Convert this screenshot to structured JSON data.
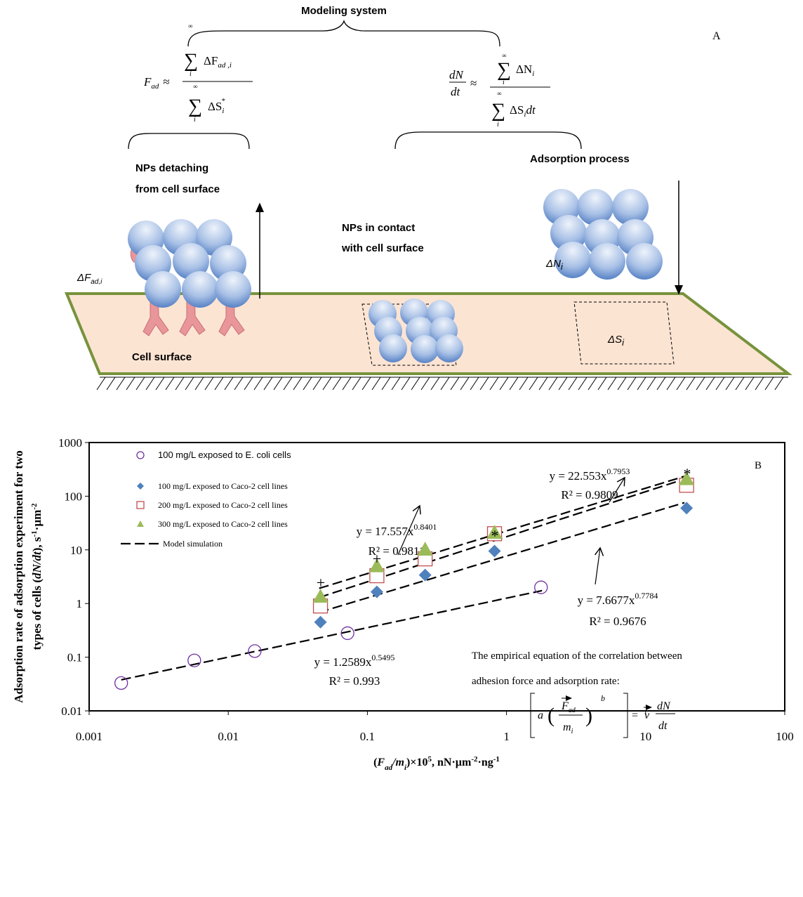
{
  "diagram": {
    "title": "Modeling system",
    "panel": "A",
    "formula_left": {
      "lhs": "F",
      "lhs_sub": "ad",
      "approx": "≈",
      "sum": "∑",
      "inf": "∞",
      "index": "i",
      "num": "ΔF",
      "num_sub": "ad ,i",
      "den": "ΔS",
      "den_sub": "i",
      "den_sup": "*"
    },
    "formula_right": {
      "dn": "dN",
      "dt": "dt",
      "approx": "≈",
      "sum": "∑",
      "inf": "∞",
      "index": "i",
      "num": "ΔN",
      "num_sub": "i",
      "den": "ΔS",
      "den_sub": "i",
      "den_tail": "dt"
    },
    "labels": {
      "detach_1": "NPs detaching",
      "detach_2": "from cell surface",
      "adsorption": "Adsorption process",
      "contact_1": "NPs in contact",
      "contact_2": "with cell surface",
      "cell_surface": "Cell surface"
    },
    "symbols": {
      "force": "ΔF",
      "force_sub": "ad,i",
      "count": "ΔN",
      "count_sub": "i",
      "area": "ΔS",
      "area_sub": "i"
    }
  },
  "chart_data": {
    "type": "scatter",
    "panel": "B",
    "log_x": true,
    "log_y": true,
    "xlim": [
      0.001,
      100
    ],
    "xticks": [
      0.001,
      0.01,
      0.1,
      1,
      10,
      100
    ],
    "ylim": [
      0.01,
      1000
    ],
    "yticks": [
      0.01,
      0.1,
      1,
      10,
      100,
      1000
    ],
    "y_label": {
      "line1": "Adsorption rate of adsorption experiment for two",
      "line2": [
        "types of cells (",
        "dN/dt",
        "), s",
        "-1",
        "·µm",
        "-2"
      ]
    },
    "x_label": [
      "(",
      "F",
      "ad",
      "/m",
      "i",
      ")×10",
      "5",
      ", nN·µm",
      "-2",
      "·ng",
      "-1"
    ],
    "legend": "upper left",
    "series": [
      {
        "name": "100 mg/L exposed to E. coli cells",
        "color": "#7030a0",
        "marker": "open-circle",
        "x": [
          0.0017,
          0.0057,
          0.0155,
          0.072,
          1.77
        ],
        "values": [
          0.033,
          0.087,
          0.13,
          0.28,
          2.0
        ]
      },
      {
        "name": "100 mg/L exposed to Caco-2 cell lines",
        "color": "#4f81bd",
        "marker": "diamond",
        "x": [
          0.046,
          0.117,
          0.26,
          0.82,
          19.7
        ],
        "values": [
          0.45,
          1.65,
          3.4,
          9.5,
          60
        ]
      },
      {
        "name": "200 mg/L exposed to Caco-2 cell lines",
        "color": "#c0504d",
        "marker": "open-square",
        "x": [
          0.046,
          0.117,
          0.26,
          0.82,
          19.7
        ],
        "values": [
          0.9,
          3.3,
          6.8,
          20,
          160
        ]
      },
      {
        "name": "300 mg/L exposed to Caco-2 cell lines",
        "color": "#9bbb59",
        "marker": "triangle",
        "x": [
          0.046,
          0.117,
          0.26,
          0.82,
          19.7
        ],
        "values": [
          1.35,
          5.0,
          10.2,
          21,
          210
        ]
      }
    ],
    "model_name": "Model simulation",
    "fits": [
      {
        "label": "y = 1.2589x",
        "a": 1.2589,
        "b": 0.5495,
        "r2_label": "R² = 0.993",
        "xrange": [
          0.0017,
          1.8
        ]
      },
      {
        "label": "y = 7.6677x",
        "a": 7.6677,
        "b": 0.7784,
        "r2_label": "R² = 0.9676",
        "xrange": [
          0.045,
          19
        ]
      },
      {
        "label": "y = 17.557x",
        "a": 17.557,
        "b": 0.8401,
        "r2_label": "R² = 0.9811",
        "xrange": [
          0.045,
          19
        ]
      },
      {
        "label": "y = 22.553x",
        "a": 22.553,
        "b": 0.7953,
        "r2_label": "R² = 0.9809",
        "xrange": [
          0.045,
          19
        ]
      }
    ],
    "significance": [
      "+",
      "+",
      "*",
      "*"
    ],
    "note": [
      "The empirical equation of the correlation between",
      "adhesion force and adsorption rate:"
    ],
    "formula": {
      "a": "a",
      "f": "F",
      "ad": "ad",
      "m": "m",
      "i": "i",
      "b": "b",
      "eq": "=",
      "v": "v",
      "dn": "dN",
      "dt": "dt"
    }
  }
}
